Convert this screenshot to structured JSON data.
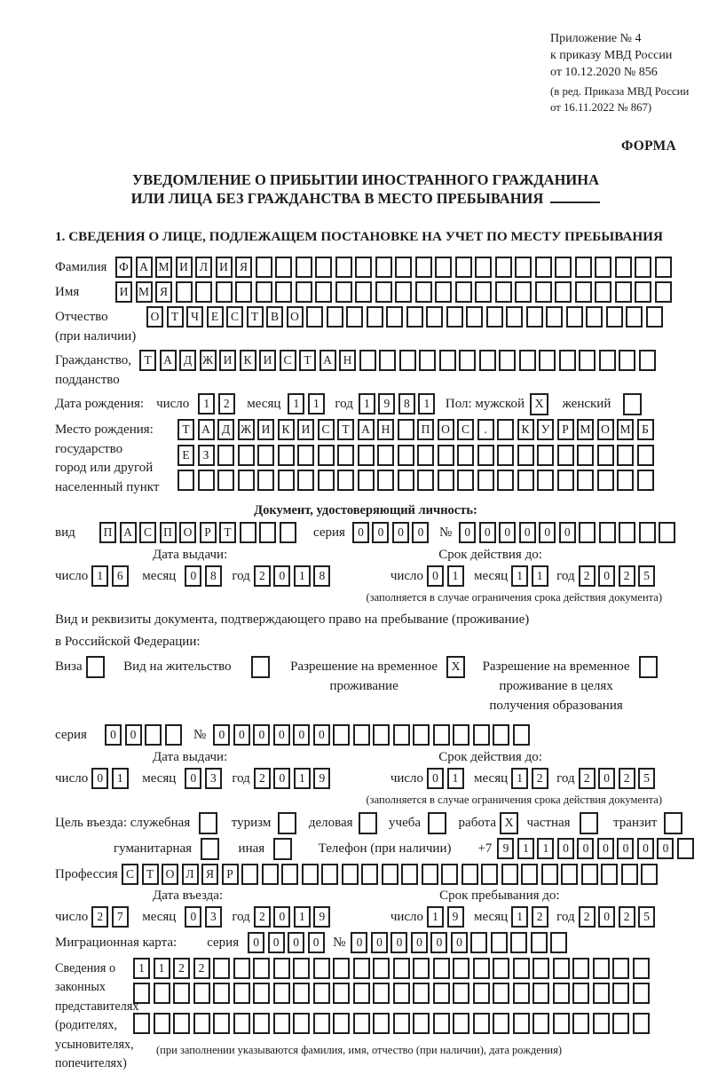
{
  "colors": {
    "ink": "#1b1b1b",
    "paper": "#ffffff",
    "box_border": "#1f1f1f"
  },
  "header": {
    "annex_line1": "Приложение № 4",
    "annex_line2": "к приказу МВД России",
    "annex_line3": "от 10.12.2020 № 856",
    "annex_line4": "(в ред. Приказа МВД России",
    "annex_line5": "от 16.11.2022 № 867)",
    "forma_label": "ФОРМА"
  },
  "title": {
    "line1": "УВЕДОМЛЕНИЕ О ПРИБЫТИИ ИНОСТРАННОГО ГРАЖДАНИНА",
    "line2": "ИЛИ ЛИЦА БЕЗ ГРАЖДАНСТВА В МЕСТО ПРЕБЫВАНИЯ"
  },
  "section1_heading": "1. СВЕДЕНИЯ О ЛИЦЕ, ПОДЛЕЖАЩЕМ ПОСТАНОВКЕ НА УЧЕТ ПО МЕСТУ ПРЕБЫВАНИЯ",
  "form": {
    "rows": [
      {
        "name": "row-surname",
        "items": [
          {
            "k": "lbl",
            "w": 68,
            "lines": [
              "Фамилия"
            ]
          },
          {
            "k": "cells",
            "v": "ФАМИЛИЯ",
            "n": 28,
            "name": "surname-cells"
          }
        ]
      },
      {
        "name": "row-firstname",
        "items": [
          {
            "k": "lbl",
            "w": 68,
            "lines": [
              "Имя"
            ]
          },
          {
            "k": "cells",
            "v": "ИМЯ",
            "n": 28,
            "name": "firstname-cells"
          }
        ]
      },
      {
        "name": "row-patronymic",
        "items": [
          {
            "k": "lbl",
            "w": 103,
            "lines": [
              "Отчество",
              "(при наличии)"
            ]
          },
          {
            "k": "cells",
            "v": "ОТЧЕСТВО",
            "n": 26,
            "name": "patronymic-cells"
          }
        ]
      },
      {
        "name": "row-citizenship",
        "items": [
          {
            "k": "lbl",
            "w": 95,
            "lines": [
              "Гражданство,",
              "подданство"
            ]
          },
          {
            "k": "cells",
            "v": "ТАДЖИКИСТАН",
            "n": 26,
            "name": "citizenship-cells"
          }
        ]
      },
      {
        "name": "row-birthdate",
        "mt": 4,
        "items": [
          {
            "k": "txt",
            "s": "Дата рождения:"
          },
          {
            "k": "txt",
            "s": "число",
            "ml": 14
          },
          {
            "k": "cells",
            "v": "12",
            "n": 2,
            "ml": 10,
            "name": "birth-day-cells"
          },
          {
            "k": "txt",
            "s": "месяц",
            "ml": 10
          },
          {
            "k": "cells",
            "v": "11",
            "n": 2,
            "ml": 8,
            "name": "birth-month-cells"
          },
          {
            "k": "txt",
            "s": "год",
            "ml": 8
          },
          {
            "k": "cells",
            "v": "1981",
            "n": 4,
            "ml": 6,
            "name": "birth-year-cells"
          },
          {
            "k": "txt",
            "s": "Пол: мужской",
            "ml": 8
          },
          {
            "k": "chk",
            "x": true,
            "ml": 6,
            "name": "sex-male-checkbox"
          },
          {
            "k": "txt",
            "s": "женский",
            "ml": 12
          },
          {
            "k": "chk",
            "x": false,
            "ml": 14,
            "name": "sex-female-checkbox"
          }
        ]
      },
      {
        "name": "row-birthplace",
        "mt": 4,
        "items": [
          {
            "k": "lbl",
            "w": 138,
            "lines": [
              "Место рождения:",
              "государство",
              "город или другой",
              "населенный пункт"
            ]
          },
          {
            "k": "cellstack",
            "name": "birthplace-cells",
            "rows": [
              {
                "v": "ТАДЖИКИСТАН ПОС. КУРМОМБ",
                "n": 24
              },
              {
                "v": "ЕЗ",
                "n": 24
              },
              {
                "v": "",
                "n": 24
              }
            ]
          }
        ]
      },
      {
        "name": "identity-doc-heading",
        "heading": "Документ, удостоверяющий личность:"
      },
      {
        "name": "row-doc-type",
        "items": [
          {
            "k": "txt",
            "s": "вид",
            "w": 50
          },
          {
            "k": "cells",
            "v": "ПАСПОРТ",
            "n": 10,
            "name": "doc-type-cells"
          },
          {
            "k": "txt",
            "s": "серия",
            "ml": 16
          },
          {
            "k": "cells",
            "v": "0000",
            "n": 4,
            "ml": 8,
            "name": "doc-series-cells"
          },
          {
            "k": "txt",
            "s": "№",
            "ml": 8
          },
          {
            "k": "cells",
            "v": "000000",
            "n": 11,
            "ml": 8,
            "name": "doc-number-cells"
          }
        ]
      },
      {
        "name": "doc-date-heads",
        "heads": [
          {
            "s": "Дата выдачи:",
            "ml": 110
          },
          {
            "s": "Срок действия до:",
            "ml": 238
          }
        ]
      },
      {
        "name": "row-doc-dates",
        "items": [
          {
            "k": "txt",
            "s": "число"
          },
          {
            "k": "cells",
            "v": "16",
            "n": 2,
            "ml": 4,
            "name": "doc-issue-day-cells"
          },
          {
            "k": "txt",
            "s": "месяц",
            "ml": 12
          },
          {
            "k": "cells",
            "v": "08",
            "n": 2,
            "ml": 10,
            "name": "doc-issue-month-cells"
          },
          {
            "k": "txt",
            "s": "год",
            "ml": 8
          },
          {
            "k": "cells",
            "v": "2018",
            "n": 4,
            "ml": 4,
            "name": "doc-issue-year-cells"
          },
          {
            "k": "txt",
            "s": "число",
            "ml": 64
          },
          {
            "k": "cells",
            "v": "01",
            "n": 2,
            "ml": 4,
            "name": "doc-expiry-day-cells"
          },
          {
            "k": "txt",
            "s": "месяц",
            "ml": 8
          },
          {
            "k": "cells",
            "v": "11",
            "n": 2,
            "ml": 4,
            "name": "doc-expiry-month-cells"
          },
          {
            "k": "txt",
            "s": "год",
            "ml": 6
          },
          {
            "k": "cells",
            "v": "2025",
            "n": 4,
            "ml": 4,
            "name": "doc-expiry-year-cells"
          }
        ]
      },
      {
        "name": "doc-expiry-note",
        "note": "(заполняется в случае ограничения срока действия документа)",
        "right": true,
        "pr": 16,
        "mb": 8
      },
      {
        "name": "residence-doc-text1",
        "text": "Вид и реквизиты документа, подтверждающего право на пребывание (проживание)",
        "mb": 6
      },
      {
        "name": "residence-doc-text2",
        "text": "в Российской Федерации:",
        "mb": 6
      },
      {
        "name": "row-residence-options",
        "mb": 10,
        "items": [
          {
            "k": "txt",
            "s": "Виза"
          },
          {
            "k": "chk",
            "x": false,
            "ml": 4,
            "name": "visa-checkbox"
          },
          {
            "k": "txt",
            "s": "Вид на жительство",
            "ml": 18
          },
          {
            "k": "chk",
            "x": false,
            "ml": 22,
            "name": "residence-permit-checkbox"
          },
          {
            "k": "stk",
            "ml": 20,
            "lines": [
              "Разрешение на временное",
              "проживание"
            ]
          },
          {
            "k": "chk",
            "x": true,
            "ml": 10,
            "name": "temp-residence-checkbox"
          },
          {
            "k": "stk",
            "ml": 16,
            "lines": [
              "Разрешение на временное",
              "проживание в целях",
              "получения образования"
            ]
          },
          {
            "k": "chk",
            "x": false,
            "ml": 10,
            "name": "temp-residence-education-checkbox"
          }
        ]
      },
      {
        "name": "row-permit-series",
        "items": [
          {
            "k": "txt",
            "s": "серия",
            "w": 56
          },
          {
            "k": "cells",
            "v": "00",
            "n": 4,
            "name": "permit-series-cells"
          },
          {
            "k": "txt",
            "s": "№",
            "ml": 10
          },
          {
            "k": "cells",
            "v": "000000",
            "n": 16,
            "ml": 8,
            "name": "permit-number-cells"
          }
        ]
      },
      {
        "name": "permit-date-heads",
        "heads": [
          {
            "s": "Дата выдачи:",
            "ml": 110
          },
          {
            "s": "Срок действия до:",
            "ml": 238
          }
        ]
      },
      {
        "name": "row-permit-dates",
        "items": [
          {
            "k": "txt",
            "s": "число"
          },
          {
            "k": "cells",
            "v": "01",
            "n": 2,
            "ml": 4,
            "name": "permit-issue-day-cells"
          },
          {
            "k": "txt",
            "s": "месяц",
            "ml": 12
          },
          {
            "k": "cells",
            "v": "03",
            "n": 2,
            "ml": 10,
            "name": "permit-issue-month-cells"
          },
          {
            "k": "txt",
            "s": "год",
            "ml": 8
          },
          {
            "k": "cells",
            "v": "2019",
            "n": 4,
            "ml": 4,
            "name": "permit-issue-year-cells"
          },
          {
            "k": "txt",
            "s": "число",
            "ml": 64
          },
          {
            "k": "cells",
            "v": "01",
            "n": 2,
            "ml": 4,
            "name": "permit-expiry-day-cells"
          },
          {
            "k": "txt",
            "s": "месяц",
            "ml": 8
          },
          {
            "k": "cells",
            "v": "12",
            "n": 2,
            "ml": 4,
            "name": "permit-expiry-month-cells"
          },
          {
            "k": "txt",
            "s": "год",
            "ml": 6
          },
          {
            "k": "cells",
            "v": "2025",
            "n": 4,
            "ml": 4,
            "name": "permit-expiry-year-cells"
          }
        ]
      },
      {
        "name": "permit-expiry-note",
        "note": "(заполняется в случае ограничения срока действия документа)",
        "right": true,
        "pr": 16,
        "mb": 6
      },
      {
        "name": "row-entry-purpose",
        "mt": 2,
        "items": [
          {
            "k": "txt",
            "s": "Цель въезда: служебная"
          },
          {
            "k": "chk",
            "x": false,
            "ml": 10,
            "name": "purpose-official-checkbox"
          },
          {
            "k": "txt",
            "s": "туризм",
            "ml": 12
          },
          {
            "k": "chk",
            "x": false,
            "ml": 8,
            "name": "purpose-tourism-checkbox"
          },
          {
            "k": "txt",
            "s": "деловая",
            "ml": 10
          },
          {
            "k": "chk",
            "x": false,
            "ml": 6,
            "name": "purpose-business-checkbox"
          },
          {
            "k": "txt",
            "s": "учеба",
            "ml": 10
          },
          {
            "k": "chk",
            "x": false,
            "ml": 8,
            "name": "purpose-study-checkbox"
          },
          {
            "k": "txt",
            "s": "работа",
            "ml": 10
          },
          {
            "k": "chk",
            "x": true,
            "ml": 4,
            "name": "purpose-work-checkbox"
          },
          {
            "k": "txt",
            "s": "частная",
            "ml": 6
          },
          {
            "k": "chk",
            "x": false,
            "ml": 10,
            "name": "purpose-private-checkbox"
          },
          {
            "k": "txt",
            "s": "транзит",
            "ml": 14
          },
          {
            "k": "chk",
            "x": false,
            "ml": 8,
            "name": "purpose-transit-checkbox"
          }
        ]
      },
      {
        "name": "row-purpose2-phone",
        "pad": 66,
        "mt": 2,
        "items": [
          {
            "k": "txt",
            "s": "гуманитарная"
          },
          {
            "k": "chk",
            "x": false,
            "ml": 10,
            "name": "purpose-humanitarian-checkbox"
          },
          {
            "k": "txt",
            "s": "иная",
            "ml": 18
          },
          {
            "k": "chk",
            "x": false,
            "ml": 10,
            "name": "purpose-other-checkbox"
          },
          {
            "k": "txt",
            "s": "Телефон (при наличии)",
            "ml": 26
          },
          {
            "k": "txt",
            "s": "+7",
            "ml": 30
          },
          {
            "k": "cells",
            "v": "911000000",
            "n": 10,
            "ml": 6,
            "name": "phone-cells"
          }
        ]
      },
      {
        "name": "row-profession",
        "mt": 2,
        "items": [
          {
            "k": "lbl",
            "w": 75,
            "lines": [
              "Профессия"
            ]
          },
          {
            "k": "cells",
            "v": "СТОЛЯР",
            "n": 27,
            "name": "profession-cells"
          }
        ]
      },
      {
        "name": "entry-date-heads",
        "heads": [
          {
            "s": "Дата въезда:",
            "ml": 110
          },
          {
            "s": "Срок пребывания до:",
            "ml": 244
          }
        ]
      },
      {
        "name": "row-entry-dates",
        "items": [
          {
            "k": "txt",
            "s": "число"
          },
          {
            "k": "cells",
            "v": "27",
            "n": 2,
            "ml": 4,
            "name": "entry-day-cells"
          },
          {
            "k": "txt",
            "s": "месяц",
            "ml": 12
          },
          {
            "k": "cells",
            "v": "03",
            "n": 2,
            "ml": 10,
            "name": "entry-month-cells"
          },
          {
            "k": "txt",
            "s": "год",
            "ml": 8
          },
          {
            "k": "cells",
            "v": "2019",
            "n": 4,
            "ml": 4,
            "name": "entry-year-cells"
          },
          {
            "k": "txt",
            "s": "число",
            "ml": 64
          },
          {
            "k": "cells",
            "v": "19",
            "n": 2,
            "ml": 4,
            "name": "stay-until-day-cells"
          },
          {
            "k": "txt",
            "s": "месяц",
            "ml": 8
          },
          {
            "k": "cells",
            "v": "12",
            "n": 2,
            "ml": 4,
            "name": "stay-until-month-cells"
          },
          {
            "k": "txt",
            "s": "год",
            "ml": 6
          },
          {
            "k": "cells",
            "v": "2025",
            "n": 4,
            "ml": 4,
            "name": "stay-until-year-cells"
          }
        ]
      },
      {
        "name": "row-migration-card",
        "mt": 4,
        "items": [
          {
            "k": "txt",
            "s": "Миграционная карта:"
          },
          {
            "k": "txt",
            "s": "серия",
            "ml": 34
          },
          {
            "k": "cells",
            "v": "0000",
            "n": 4,
            "ml": 10,
            "name": "migration-series-cells"
          },
          {
            "k": "txt",
            "s": "№",
            "ml": 6
          },
          {
            "k": "cells",
            "v": "000000",
            "n": 11,
            "ml": 6,
            "name": "migration-number-cells"
          }
        ]
      },
      {
        "name": "row-legal-representatives",
        "mt": 2,
        "items": [
          {
            "k": "lbl",
            "w": 88,
            "fs": 14.2,
            "lines": [
              "Сведения о",
              "законных",
              "представителях",
              "(родителях,",
              "усыновителях,",
              "попечителях)"
            ]
          },
          {
            "k": "cellstack",
            "name": "representatives-cells",
            "note": "(при заполнении указываются фамилия, имя, отчество (при наличии), дата рождения)",
            "note_pl": 26,
            "rows": [
              {
                "v": "1122",
                "n": 26
              },
              {
                "v": "",
                "n": 26
              },
              {
                "v": "",
                "n": 26
              }
            ]
          }
        ]
      }
    ]
  }
}
